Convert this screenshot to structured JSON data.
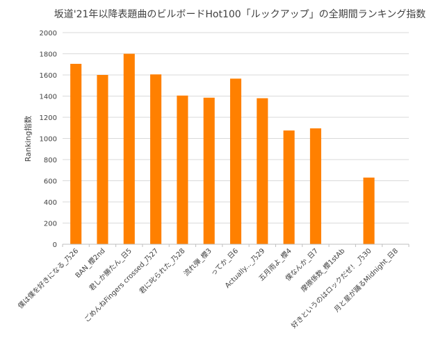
{
  "chart_data": {
    "type": "bar",
    "title": "坂道'21年以降表題曲のビルボードHot100「ルックアップ」の全期間ランキング指数",
    "xlabel": "",
    "ylabel": "Ranking指数",
    "ylim": [
      0,
      2000
    ],
    "yticks": [
      0,
      200,
      400,
      600,
      800,
      1000,
      1200,
      1400,
      1600,
      1800,
      2000
    ],
    "grid": true,
    "legend": "none",
    "bar_color": "#FF8000",
    "categories": [
      "僕は僕を好きになる_乃26",
      "BAN_櫻2nd",
      "君しか勝たん_日5",
      "ごめんねFingers crossed_乃27",
      "君に叱られた_乃28",
      "流れ弾_櫻3",
      "ってか_日6",
      "Actually..._乃29",
      "五月雨よ_櫻4",
      "僕なんか_日7",
      "摩擦係数_櫻1stAb",
      "好きというのはロックだぜ！_乃30",
      "月と星が踊るMidnight_日8"
    ],
    "values": [
      1705,
      1600,
      1800,
      1605,
      1405,
      1385,
      1565,
      1380,
      1075,
      1095,
      null,
      630,
      null
    ]
  }
}
